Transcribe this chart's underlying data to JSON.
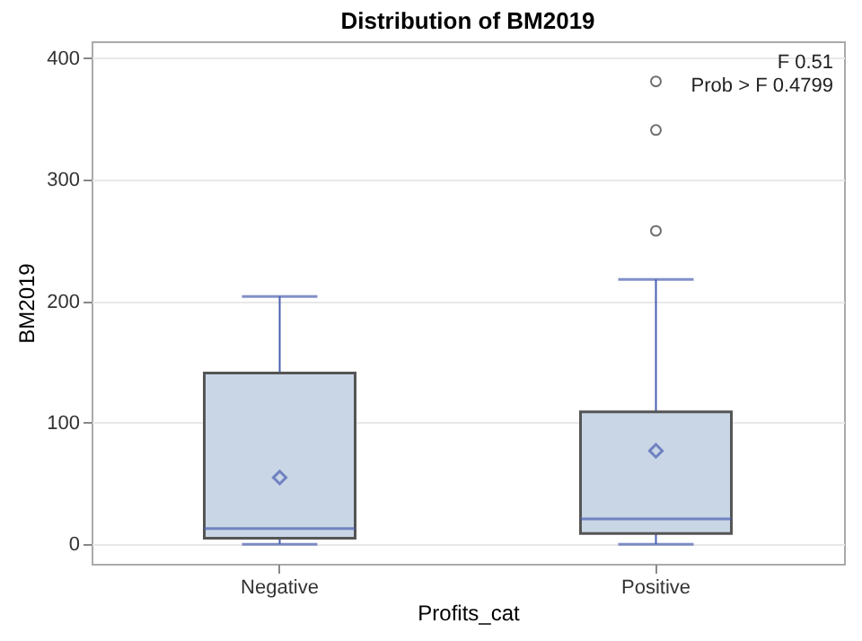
{
  "chart_data": {
    "type": "box",
    "title": "Distribution of BM2019",
    "xlabel": "Profits_cat",
    "ylabel": "BM2019",
    "categories": [
      "Negative",
      "Positive"
    ],
    "boxes": [
      {
        "low": 0,
        "q1": 5,
        "median": 13,
        "q3": 141,
        "high": 204,
        "mean": 55
      },
      {
        "low": 0,
        "q1": 9,
        "median": 21,
        "q3": 109,
        "high": 218,
        "mean": 77,
        "outliers": [
          258,
          341,
          381
        ]
      }
    ],
    "color": "#c9d6e6",
    "ylim": [
      -16,
      414
    ],
    "yticks": [
      0,
      100,
      200,
      300,
      400
    ],
    "grid": "y",
    "marker": "diamond",
    "annotations": [
      "F 0.51",
      "Prob > F 0.4799"
    ]
  }
}
